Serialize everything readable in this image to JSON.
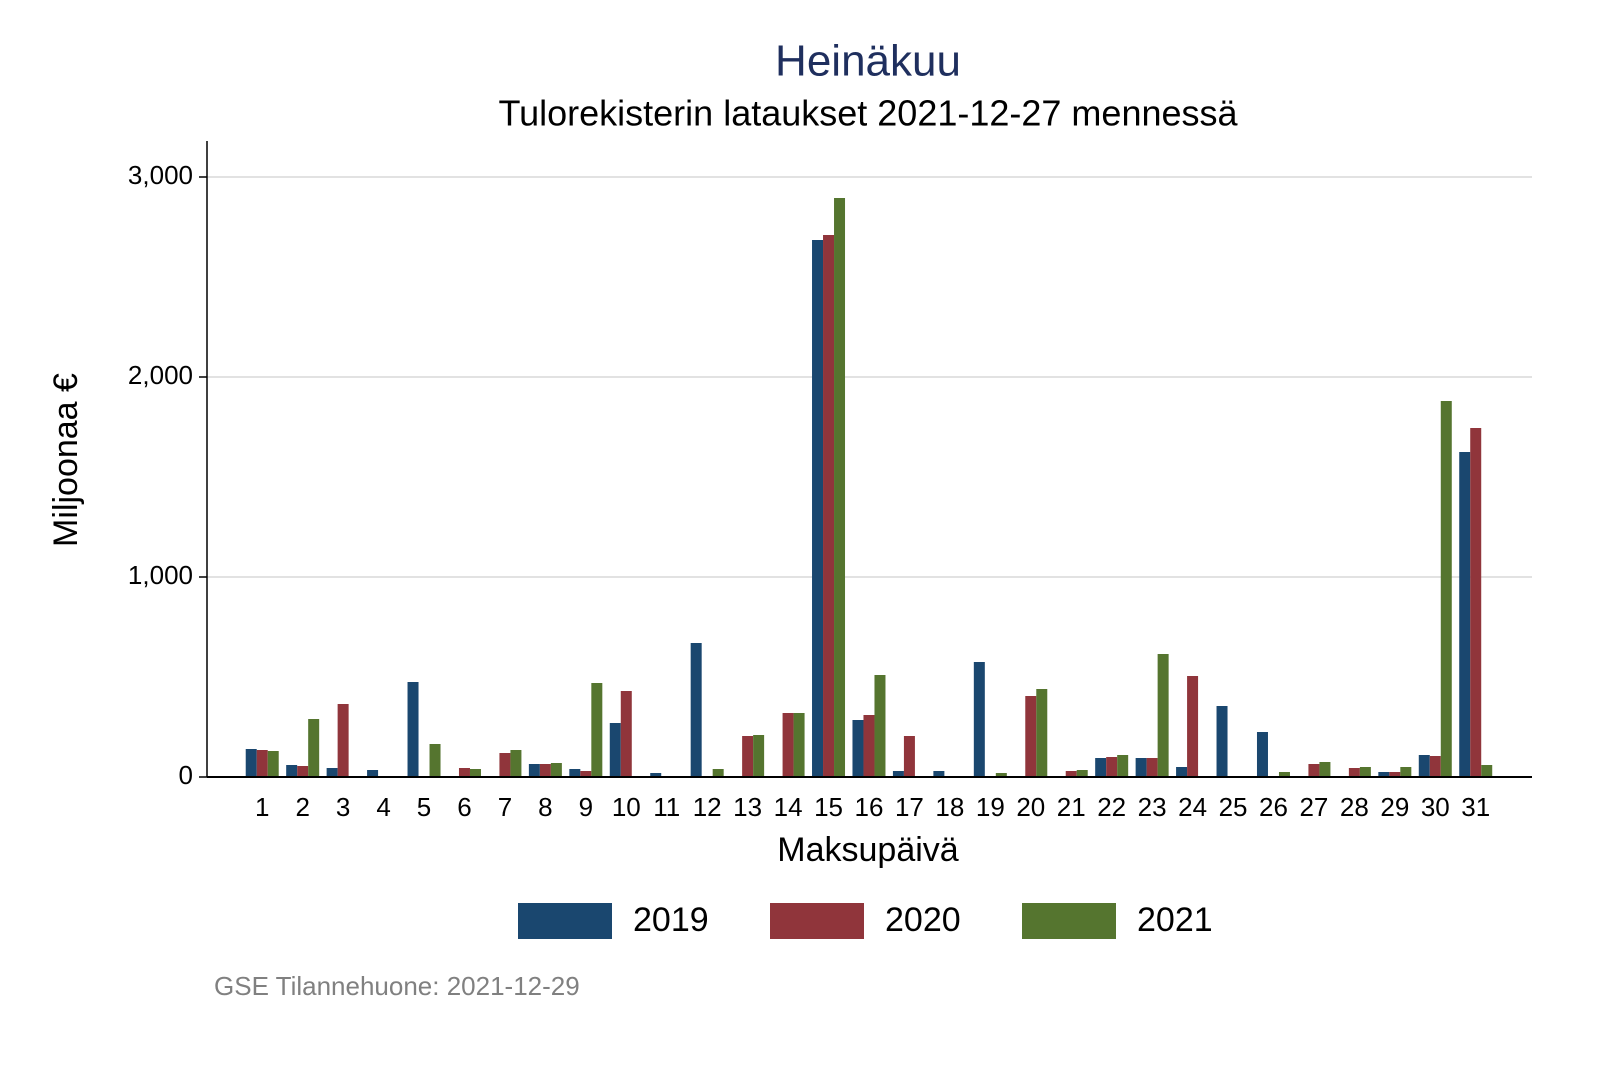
{
  "chart_data": {
    "type": "bar",
    "title": "Heinäkuu",
    "subtitle": "Tulorekisterin lataukset 2021-12-27 mennessä",
    "y_label": "Miljoonaa €",
    "x_label": "Maksupäivä",
    "note": "GSE Tilannehuone: 2021-12-29",
    "categories": [
      "1",
      "2",
      "3",
      "4",
      "5",
      "6",
      "7",
      "8",
      "9",
      "10",
      "11",
      "12",
      "13",
      "14",
      "15",
      "16",
      "17",
      "18",
      "19",
      "20",
      "21",
      "22",
      "23",
      "24",
      "25",
      "26",
      "27",
      "28",
      "29",
      "30",
      "31"
    ],
    "series": [
      {
        "name": "2019",
        "color": "#1a476f",
        "values": [
          140,
          60,
          45,
          35,
          475,
          0,
          0,
          65,
          40,
          270,
          20,
          670,
          0,
          0,
          2685,
          285,
          30,
          30,
          575,
          0,
          0,
          95,
          95,
          50,
          355,
          225,
          0,
          0,
          25,
          110,
          1625
        ]
      },
      {
        "name": "2020",
        "color": "#90353b",
        "values": [
          135,
          55,
          365,
          0,
          5,
          45,
          120,
          65,
          30,
          430,
          0,
          0,
          205,
          320,
          2710,
          310,
          205,
          0,
          0,
          405,
          30,
          100,
          95,
          505,
          0,
          0,
          65,
          45,
          25,
          105,
          1745
        ]
      },
      {
        "name": "2021",
        "color": "#55752f",
        "values": [
          130,
          290,
          0,
          0,
          165,
          40,
          135,
          70,
          470,
          0,
          0,
          40,
          210,
          320,
          2895,
          510,
          0,
          0,
          20,
          440,
          35,
          110,
          615,
          0,
          0,
          25,
          75,
          50,
          50,
          1880,
          60
        ]
      }
    ],
    "ylim": [
      0,
      3180
    ],
    "yticks": [
      0,
      {
        "value": 1000,
        "label": "1,000"
      },
      {
        "value": 2000,
        "label": "2,000"
      },
      {
        "value": 3000,
        "label": "3,000"
      }
    ],
    "grid": true
  }
}
